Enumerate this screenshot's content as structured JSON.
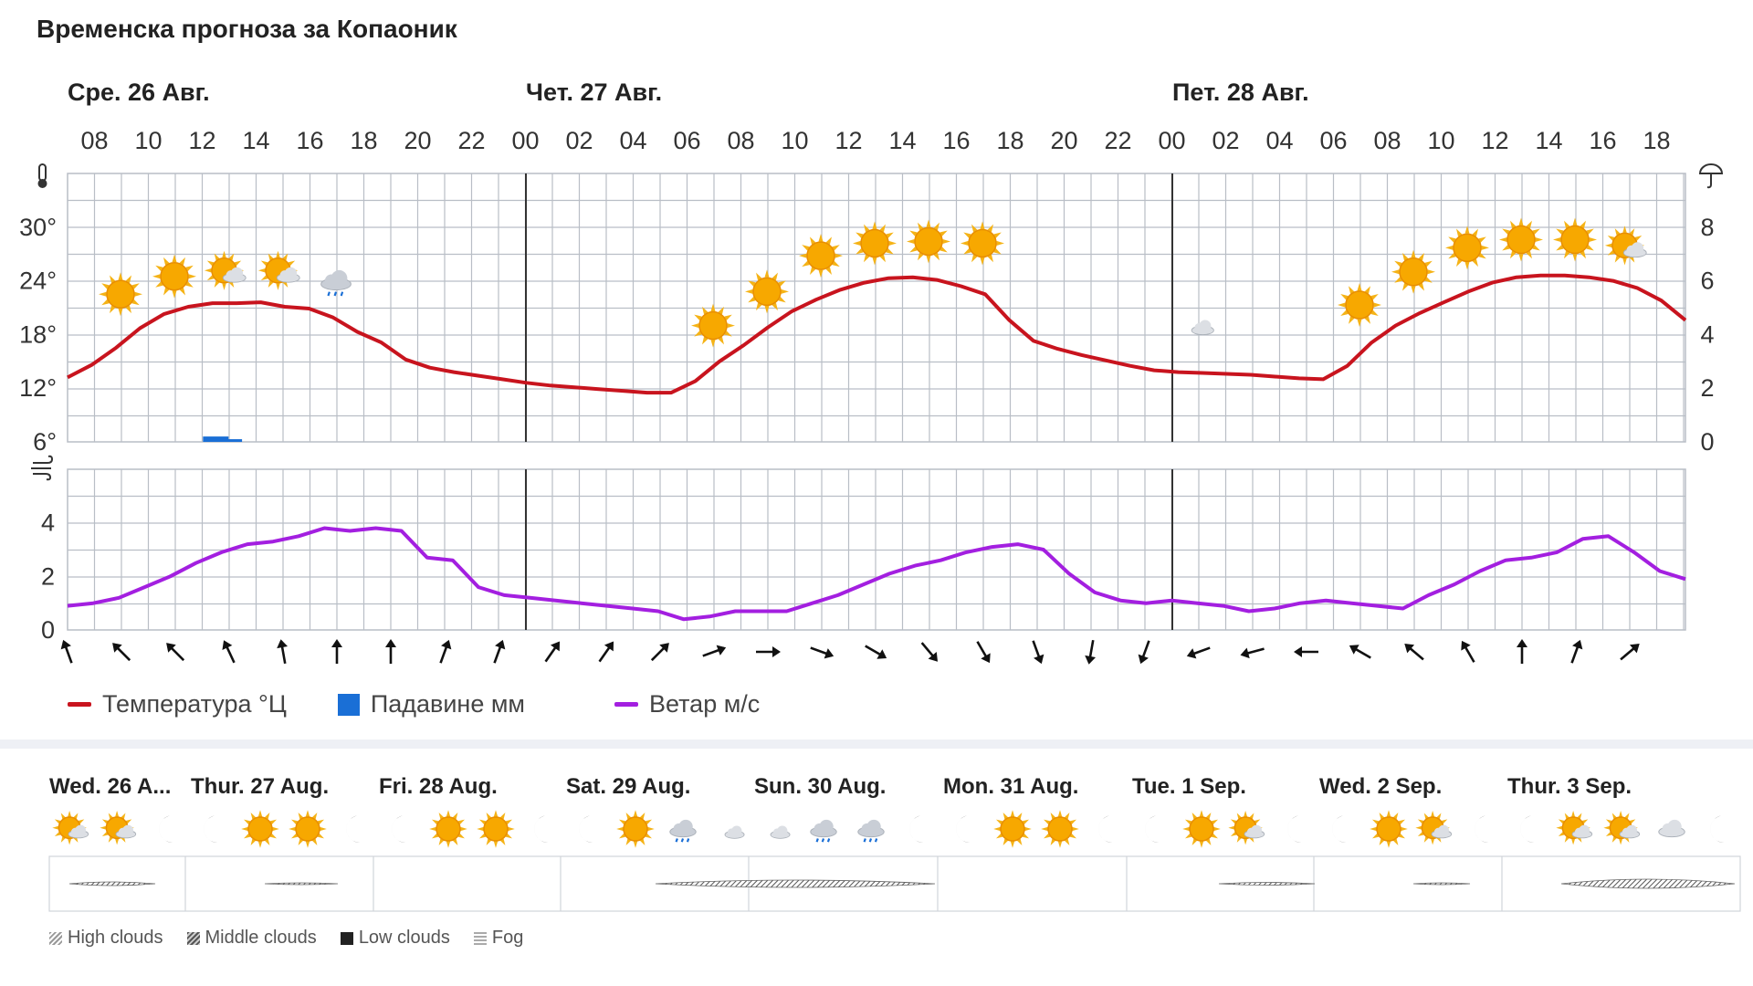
{
  "title": "Временска прогноза за Копаоник",
  "day_labels": [
    "Сре. 26 Авг.",
    "Чет. 27 Авг.",
    "Пет. 28 Авг."
  ],
  "chart_data": {
    "type": "line",
    "x": [
      "08",
      "10",
      "12",
      "14",
      "16",
      "18",
      "20",
      "22",
      "00",
      "02",
      "04",
      "06",
      "08",
      "10",
      "12",
      "14",
      "16",
      "18",
      "20",
      "22",
      "00",
      "02",
      "04",
      "06",
      "08",
      "10",
      "12",
      "14",
      "16",
      "18"
    ],
    "temperature": {
      "name": "Температура °Ц",
      "color": "#c8141e",
      "ylim": [
        6,
        36
      ],
      "yticks": [
        "6°",
        "12°",
        "18°",
        "24°",
        "30°"
      ],
      "values": [
        13.2,
        14.6,
        16.5,
        18.7,
        20.3,
        21.1,
        21.5,
        21.5,
        21.6,
        21.1,
        20.9,
        19.9,
        18.3,
        17.1,
        15.2,
        14.3,
        13.8,
        13.4,
        13.0,
        12.6,
        12.3,
        12.1,
        11.9,
        11.7,
        11.5,
        11.5,
        12.8,
        15.0,
        16.8,
        18.8,
        20.6,
        21.9,
        23.0,
        23.8,
        24.3,
        24.4,
        24.1,
        23.4,
        22.5,
        19.6,
        17.3,
        16.4,
        15.7,
        15.1,
        14.5,
        14.0,
        13.8,
        13.7,
        13.6,
        13.5,
        13.3,
        13.1,
        13.0,
        14.5,
        17.1,
        19.0,
        20.4,
        21.6,
        22.8,
        23.8,
        24.4,
        24.6,
        24.6,
        24.4,
        24.0,
        23.2,
        21.8,
        19.6
      ]
    },
    "precipitation": {
      "name": "Падавине мм",
      "color": "#1a6fd6",
      "ylim": [
        0,
        10
      ],
      "yticks": [
        "0",
        "2",
        "4",
        "6",
        "8"
      ],
      "bars": [
        {
          "x": "17",
          "value": 0.2
        },
        {
          "x": "18",
          "value": 0.1
        }
      ]
    },
    "wind": {
      "name": "Ветар м/с",
      "color": "#a31fe0",
      "ylim": [
        0,
        6
      ],
      "yticks": [
        "0",
        "2",
        "4"
      ],
      "values": [
        0.9,
        1.0,
        1.2,
        1.6,
        2.0,
        2.5,
        2.9,
        3.2,
        3.3,
        3.5,
        3.8,
        3.7,
        3.8,
        3.7,
        2.7,
        2.6,
        1.6,
        1.3,
        1.2,
        1.1,
        1.0,
        0.9,
        0.8,
        0.7,
        0.4,
        0.5,
        0.7,
        0.7,
        0.7,
        1.0,
        1.3,
        1.7,
        2.1,
        2.4,
        2.6,
        2.9,
        3.1,
        3.2,
        3.0,
        2.1,
        1.4,
        1.1,
        1.0,
        1.1,
        1.0,
        0.9,
        0.7,
        0.8,
        1.0,
        1.1,
        1.0,
        0.9,
        0.8,
        1.3,
        1.7,
        2.2,
        2.6,
        2.7,
        2.9,
        3.4,
        3.5,
        2.9,
        2.2,
        1.9
      ]
    },
    "weather_icons": [
      "sun",
      "sun",
      "sun-cloud",
      "sun-cloud",
      "rain",
      "moon",
      "moon",
      "moon",
      "moon",
      "moon",
      "moon",
      "sun",
      "sun",
      "sun",
      "sun",
      "sun",
      "sun",
      "moon",
      "moon",
      "moon",
      "moon-cloud",
      "moon",
      "moon",
      "sun",
      "sun",
      "sun",
      "sun",
      "sun",
      "sun-cloud"
    ],
    "weather_icon_levels_C": [
      22.5,
      24.5,
      25,
      25,
      24,
      22.3,
      20.5,
      19,
      18.4,
      17.8,
      17.8,
      19,
      22.8,
      26.8,
      28.2,
      28.4,
      28.2,
      25,
      22.2,
      20,
      19.2,
      18.7,
      18.7,
      21.3,
      25,
      27.7,
      28.6,
      28.6,
      27.8
    ],
    "wind_directions_deg": [
      160,
      135,
      135,
      155,
      170,
      180,
      180,
      200,
      200,
      215,
      215,
      225,
      250,
      270,
      290,
      300,
      320,
      330,
      340,
      10,
      20,
      70,
      75,
      90,
      120,
      130,
      150,
      180,
      200,
      230
    ],
    "grid": true,
    "legend_position": "bottom-left"
  },
  "week": {
    "days": [
      "Wed. 26 A...",
      "Thur. 27 Aug.",
      "Fri. 28 Aug.",
      "Sat. 29 Aug.",
      "Sun. 30 Aug.",
      "Mon. 31 Aug.",
      "Tue. 1 Sep.",
      "Wed. 2 Sep.",
      "Thur. 3 Sep."
    ],
    "icons": [
      [
        "sun-cloud",
        "sun-cloud",
        "moon"
      ],
      [
        "moon",
        "sun",
        "sun",
        "moon"
      ],
      [
        "moon",
        "sun",
        "sun",
        "moon"
      ],
      [
        "moon",
        "sun",
        "rain",
        "moon-cloud"
      ],
      [
        "moon-cloud",
        "rain",
        "rain",
        "moon"
      ],
      [
        "moon",
        "sun",
        "sun",
        "moon"
      ],
      [
        "moon",
        "sun",
        "sun-cloud",
        "moon"
      ],
      [
        "moon",
        "sun",
        "sun-cloud",
        "moon"
      ],
      [
        "moon",
        "sun-cloud",
        "sun-cloud",
        "cloud",
        "moon"
      ]
    ],
    "cloud_legend": [
      "High clouds",
      "Middle clouds",
      "Low clouds",
      "Fog"
    ]
  }
}
